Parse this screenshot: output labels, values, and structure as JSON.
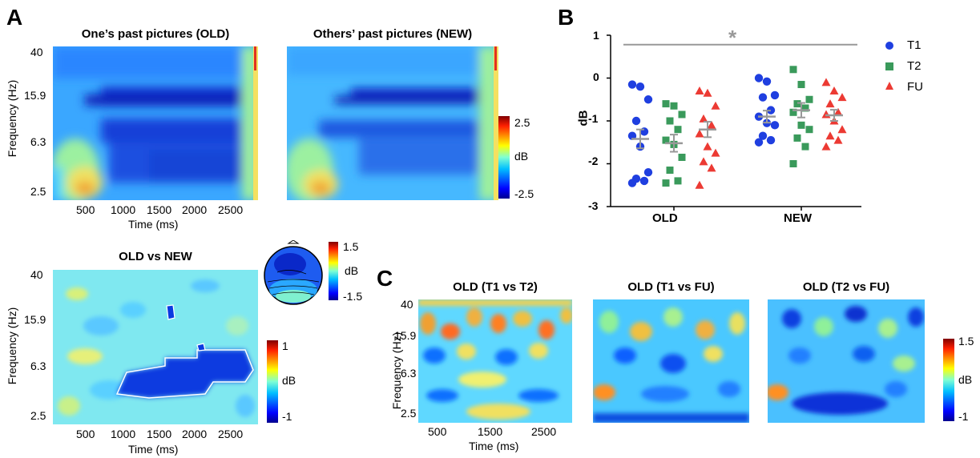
{
  "panels": {
    "a": {
      "label": "A",
      "old_title": "One’s past pictures (OLD)",
      "new_title": "Others’ past pictures (NEW)",
      "diff_title": "OLD vs NEW",
      "ylabel": "Frequency (Hz)",
      "xlabel": "Time (ms)",
      "yticks": [
        "40",
        "15.9",
        "6.3",
        "2.5"
      ],
      "xticks": [
        "500",
        "1000",
        "1500",
        "2000",
        "2500"
      ],
      "cbar_top": {
        "max": "2.5",
        "mid": "dB",
        "min": "-2.5"
      },
      "cbar_diff": {
        "max": "1",
        "mid": "dB",
        "min": "-1"
      },
      "topo_cbar": {
        "max": "1.5",
        "mid": "dB",
        "min": "-1.5"
      }
    },
    "b": {
      "label": "B",
      "ylabel": "dB",
      "yticks": [
        "1",
        "0",
        "-1",
        "-2",
        "-3"
      ],
      "categories": [
        "OLD",
        "NEW"
      ],
      "significance": "*",
      "legend": [
        "T1",
        "T2",
        "FU"
      ]
    },
    "c": {
      "label": "C",
      "titles": [
        "OLD (T1 vs T2)",
        "OLD (T1 vs FU)",
        "OLD (T2 vs FU)"
      ],
      "ylabel": "Frequency (Hz)",
      "xlabel": "Time (ms)",
      "yticks": [
        "40",
        "15.9",
        "6.3",
        "2.5"
      ],
      "xticks": [
        "500",
        "1500",
        "2500"
      ],
      "cbar": {
        "max": "1.5",
        "mid": "dB",
        "min": "-1"
      }
    }
  },
  "colors": {
    "t1": "#1f3fe0",
    "t2": "#3a9a5b",
    "fu": "#ec3a33",
    "mean": "#999999"
  },
  "chart_data": [
    {
      "type": "heatmap",
      "title": "One’s past pictures (OLD)",
      "xlabel": "Time (ms)",
      "ylabel": "Frequency (Hz)",
      "xlim": [
        0,
        2800
      ],
      "ylim": [
        2,
        40
      ],
      "clim": [
        -2.5,
        2.5
      ]
    },
    {
      "type": "heatmap",
      "title": "Others’ past pictures (NEW)",
      "xlim": [
        0,
        2800
      ],
      "ylim": [
        2,
        40
      ],
      "clim": [
        -2.5,
        2.5
      ]
    },
    {
      "type": "heatmap",
      "title": "OLD vs NEW",
      "xlabel": "Time (ms)",
      "ylabel": "Frequency (Hz)",
      "xlim": [
        0,
        2800
      ],
      "ylim": [
        2,
        40
      ],
      "clim": [
        -1,
        1
      ]
    },
    {
      "type": "scatter",
      "categories": [
        "OLD",
        "NEW"
      ],
      "ylabel": "dB",
      "ylim": [
        -3,
        1
      ],
      "series": [
        {
          "name": "T1",
          "group": "OLD",
          "values": [
            -0.15,
            -0.2,
            -0.5,
            -1.0,
            -1.25,
            -1.35,
            -1.6,
            -2.2,
            -2.35,
            -2.4,
            -2.45
          ],
          "mean": -1.42,
          "sem": 0.22
        },
        {
          "name": "T2",
          "group": "OLD",
          "values": [
            -0.6,
            -0.65,
            -0.85,
            -1.0,
            -1.2,
            -1.45,
            -1.55,
            -1.85,
            -2.15,
            -2.4,
            -2.45
          ],
          "mean": -1.52,
          "sem": 0.2
        },
        {
          "name": "FU",
          "group": "OLD",
          "values": [
            -0.3,
            -0.35,
            -0.65,
            -0.95,
            -1.1,
            -1.3,
            -1.6,
            -1.75,
            -1.95,
            -2.1,
            -2.5
          ],
          "mean": -1.2,
          "sem": 0.18
        },
        {
          "name": "T1",
          "group": "NEW",
          "values": [
            0.0,
            -0.08,
            -0.4,
            -0.45,
            -0.75,
            -0.9,
            -1.05,
            -1.1,
            -1.35,
            -1.45,
            -1.5
          ],
          "mean": -0.9,
          "sem": 0.14
        },
        {
          "name": "T2",
          "group": "NEW",
          "values": [
            0.2,
            -0.15,
            -0.5,
            -0.6,
            -0.7,
            -0.8,
            -1.1,
            -1.2,
            -1.4,
            -1.6,
            -2.0
          ],
          "mean": -0.75,
          "sem": 0.17
        },
        {
          "name": "FU",
          "group": "NEW",
          "values": [
            -0.1,
            -0.3,
            -0.45,
            -0.6,
            -0.8,
            -0.85,
            -1.0,
            -1.2,
            -1.35,
            -1.45,
            -1.6
          ],
          "mean": -0.87,
          "sem": 0.13
        }
      ]
    },
    {
      "type": "heatmap",
      "title": "OLD (T1 vs T2)",
      "xlim": [
        0,
        2800
      ],
      "ylim": [
        2,
        40
      ],
      "clim": [
        -1,
        1.5
      ]
    },
    {
      "type": "heatmap",
      "title": "OLD (T1 vs FU)",
      "xlim": [
        0,
        2800
      ],
      "ylim": [
        2,
        40
      ],
      "clim": [
        -1,
        1.5
      ]
    },
    {
      "type": "heatmap",
      "title": "OLD (T2 vs FU)",
      "xlim": [
        0,
        2800
      ],
      "ylim": [
        2,
        40
      ],
      "clim": [
        -1,
        1.5
      ]
    }
  ]
}
